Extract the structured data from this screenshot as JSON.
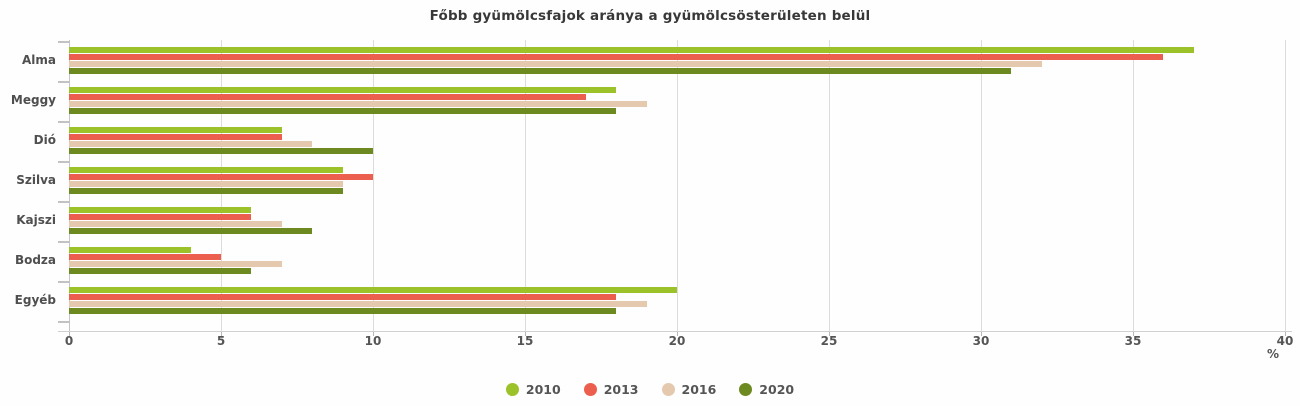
{
  "chart_data": {
    "type": "bar",
    "orientation": "horizontal",
    "title": "Főbb gyümölcsfajok aránya a gyümölcsösterületen belül",
    "categories": [
      "Alma",
      "Meggy",
      "Dió",
      "Szilva",
      "Kajszi",
      "Bodza",
      "Egyéb"
    ],
    "series": [
      {
        "name": "2010",
        "color": "#9cc22a",
        "values": [
          37,
          18,
          7,
          9,
          6,
          4,
          20
        ]
      },
      {
        "name": "2013",
        "color": "#ec5f4f",
        "values": [
          36,
          17,
          7,
          10,
          6,
          5,
          18
        ]
      },
      {
        "name": "2016",
        "color": "#e4c9ae",
        "values": [
          32,
          19,
          8,
          9,
          7,
          7,
          19
        ]
      },
      {
        "name": "2020",
        "color": "#6d8a21",
        "values": [
          31,
          18,
          10,
          9,
          8,
          6,
          18
        ]
      }
    ],
    "xlabel": "%",
    "xlim": [
      0,
      40
    ],
    "xticks": [
      0,
      5,
      10,
      15,
      20,
      25,
      30,
      35,
      40
    ],
    "grid": true,
    "legend_position": "bottom"
  }
}
